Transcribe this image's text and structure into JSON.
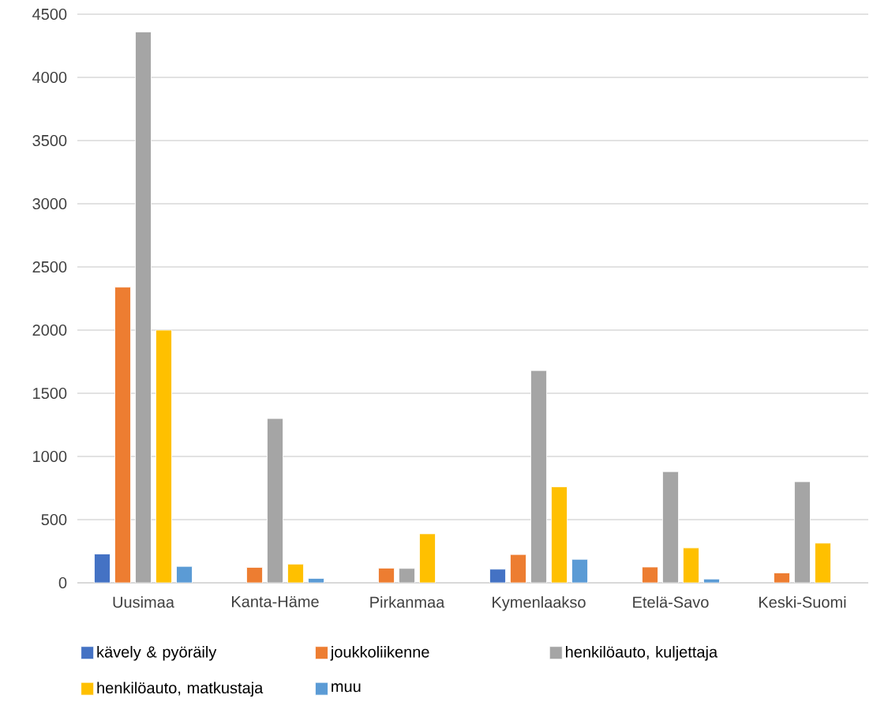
{
  "chart_data": {
    "type": "bar",
    "categories": [
      "Uusimaa",
      "Kanta-Häme",
      "Pirkanmaa",
      "Kymenlaakso",
      "Etelä-Savo",
      "Keski-Suomi"
    ],
    "series": [
      {
        "name": "kävely & pyöräily",
        "color": "#4472c4",
        "values": [
          228,
          null,
          null,
          108,
          null,
          null
        ]
      },
      {
        "name": "joukkoliikenne",
        "color": "#ed7d31",
        "values": [
          2340,
          122,
          116,
          224,
          125,
          78
        ]
      },
      {
        "name": "henkilöauto, kuljettaja",
        "color": "#a5a5a5",
        "values": [
          4360,
          1300,
          114,
          1680,
          880,
          800
        ]
      },
      {
        "name": "henkilöauto, matkustaja",
        "color": "#ffc000",
        "values": [
          2000,
          148,
          388,
          760,
          276,
          314
        ]
      },
      {
        "name": "muu",
        "color": "#5b9bd5",
        "values": [
          130,
          35,
          null,
          186,
          30,
          null
        ]
      }
    ],
    "ylim": [
      0,
      4500
    ],
    "yticks": [
      0,
      500,
      1000,
      1500,
      2000,
      2500,
      3000,
      3500,
      4000,
      4500
    ],
    "grid": "y",
    "legend": "bottom"
  }
}
